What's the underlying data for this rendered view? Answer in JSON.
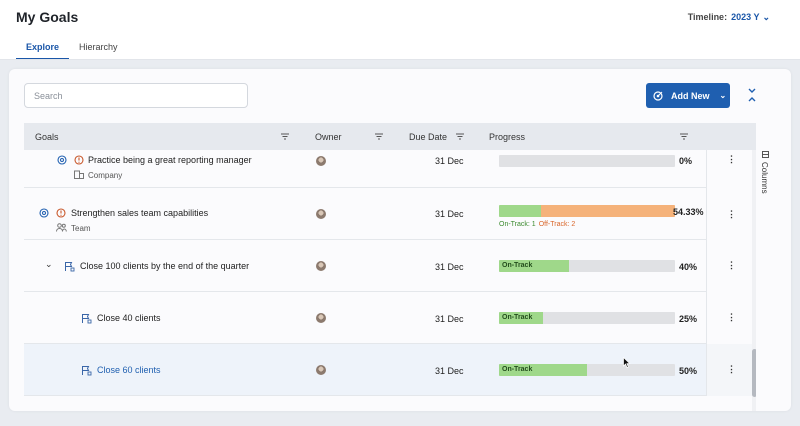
{
  "header": {
    "title": "My Goals",
    "timeline_label": "Timeline:",
    "timeline_value": "2023 Y"
  },
  "tabs": [
    {
      "label": "Explore",
      "active": true
    },
    {
      "label": "Hierarchy",
      "active": false
    }
  ],
  "toolbar": {
    "search_placeholder": "Search",
    "add_new_label": "Add New"
  },
  "table": {
    "columns": [
      "Goals",
      "Owner",
      "Due Date",
      "Progress"
    ],
    "columns_toggle_label": "Columns",
    "rows": [
      {
        "name": "Practice being a great reporting manager",
        "type": "Company",
        "due": "31 Dec",
        "progress": 0,
        "progress_label": "0%",
        "status": ""
      },
      {
        "name": "Strengthen sales team capabilities",
        "type": "Team",
        "due": "31 Dec",
        "progress": 54.33,
        "progress_label": "54.33%",
        "on_track": "On-Track: 1",
        "off_track": "Off-Track: 2"
      },
      {
        "name": "Close 100 clients by the end of the quarter",
        "due": "31 Dec",
        "progress": 40,
        "progress_label": "40%",
        "status": "On-Track"
      },
      {
        "name": "Close 40 clients",
        "due": "31 Dec",
        "progress": 25,
        "progress_label": "25%",
        "status": "On-Track"
      },
      {
        "name": "Close 60 clients",
        "due": "31 Dec",
        "progress": 50,
        "progress_label": "50%",
        "status": "On-Track",
        "selected": true
      }
    ]
  },
  "colors": {
    "accent": "#1f5fb0",
    "on_track": "#9fd88a",
    "off_track": "#f5b27a",
    "bar_bg": "#e0e1e4"
  }
}
